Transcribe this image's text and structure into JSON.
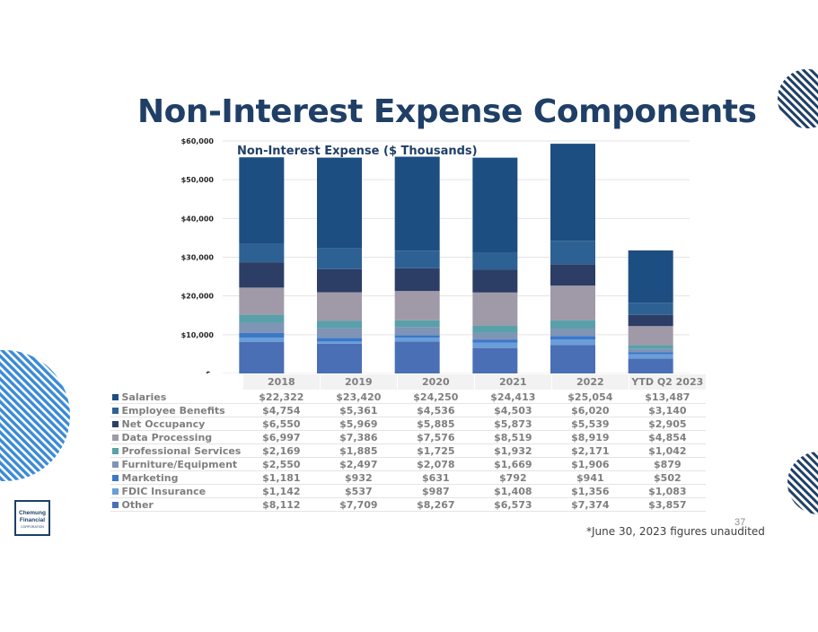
{
  "slide": {
    "title": "Non-Interest Expense Components",
    "footnote": "*June 30, 2023 figures unaudited",
    "page_number": "37",
    "logo": {
      "line1": "Chemung",
      "line2": "Financial",
      "line3": "CORPORATION"
    }
  },
  "chart_data": {
    "type": "bar",
    "stacked": true,
    "title": "Non-Interest Expense ($ Thousands)",
    "categories": [
      "2018",
      "2019",
      "2020",
      "2021",
      "2022",
      "YTD Q2 2023"
    ],
    "y_ticks": [
      "$-",
      "$10,000",
      "$20,000",
      "$30,000",
      "$40,000",
      "$50,000",
      "$60,000"
    ],
    "ylim": [
      0,
      60000
    ],
    "series": [
      {
        "name": "Other",
        "color": "#4a6fb5",
        "values": [
          8112,
          7709,
          8267,
          6573,
          7374,
          3857
        ],
        "labels": [
          "$8,112",
          "$7,709",
          "$8,267",
          "$6,573",
          "$7,374",
          "$3,857"
        ]
      },
      {
        "name": "FDIC Insurance",
        "color": "#6b9ed8",
        "values": [
          1142,
          537,
          987,
          1408,
          1356,
          1083
        ],
        "labels": [
          "$1,142",
          "$537",
          "$987",
          "$1,408",
          "$1,356",
          "$1,083"
        ]
      },
      {
        "name": "Marketing",
        "color": "#3b78c8",
        "values": [
          1181,
          932,
          631,
          792,
          941,
          502
        ],
        "labels": [
          "$1,181",
          "$932",
          "$631",
          "$792",
          "$941",
          "$502"
        ]
      },
      {
        "name": "Furniture/Equipment",
        "color": "#8094b5",
        "values": [
          2550,
          2497,
          2078,
          1669,
          1906,
          879
        ],
        "labels": [
          "$2,550",
          "$2,497",
          "$2,078",
          "$1,669",
          "$1,906",
          "$879"
        ]
      },
      {
        "name": "Professional Services",
        "color": "#5aa0aa",
        "values": [
          2169,
          1885,
          1725,
          1932,
          2171,
          1042
        ],
        "labels": [
          "$2,169",
          "$1,885",
          "$1,725",
          "$1,932",
          "$2,171",
          "$1,042"
        ]
      },
      {
        "name": "Data Processing",
        "color": "#a09aa8",
        "values": [
          6997,
          7386,
          7576,
          8519,
          8919,
          4854
        ],
        "labels": [
          "$6,997",
          "$7,386",
          "$7,576",
          "$8,519",
          "$8,919",
          "$4,854"
        ]
      },
      {
        "name": "Net Occupancy",
        "color": "#2c3e66",
        "values": [
          6550,
          5969,
          5885,
          5873,
          5539,
          2905
        ],
        "labels": [
          "$6,550",
          "$5,969",
          "$5,885",
          "$5,873",
          "$5,539",
          "$2,905"
        ]
      },
      {
        "name": "Employee Benefits",
        "color": "#2e6193",
        "values": [
          4754,
          5361,
          4536,
          4503,
          6020,
          3140
        ],
        "labels": [
          "$4,754",
          "$5,361",
          "$4,536",
          "$4,503",
          "$6,020",
          "$3,140"
        ]
      },
      {
        "name": "Salaries",
        "color": "#1d4e82",
        "values": [
          22322,
          23420,
          24250,
          24413,
          25054,
          13487
        ],
        "labels": [
          "$22,322",
          "$23,420",
          "$24,250",
          "$24,413",
          "$25,054",
          "$13,487"
        ]
      }
    ],
    "table_row_order": [
      "Salaries",
      "Employee Benefits",
      "Net Occupancy",
      "Data Processing",
      "Professional Services",
      "Furniture/Equipment",
      "Marketing",
      "FDIC Insurance",
      "Other"
    ]
  }
}
